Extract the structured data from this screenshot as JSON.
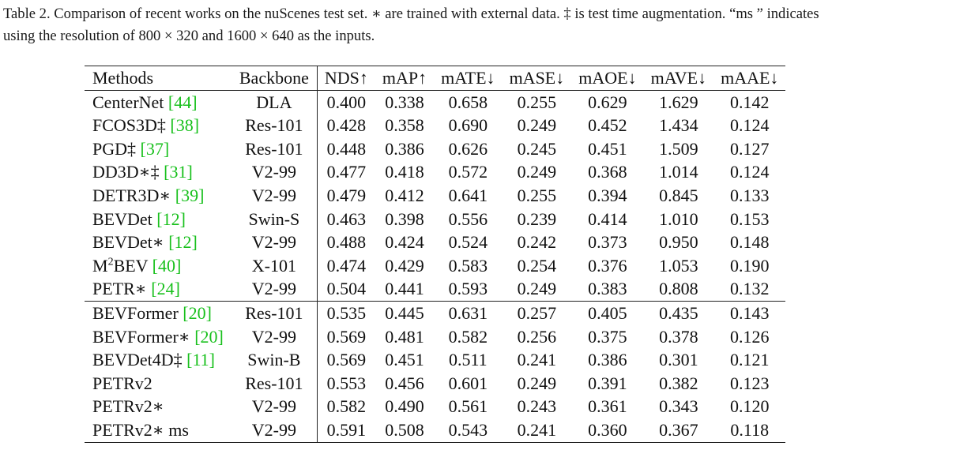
{
  "caption": {
    "line1": "Table 2. Comparison of recent works on the nuScenes test set. ∗ are trained with external data. ‡ is test time augmentation. “ms ” indicates",
    "line2": "using the resolution of 800 × 320 and 1600 × 640 as the inputs."
  },
  "table": {
    "headers": [
      "Methods",
      "Backbone",
      "NDS↑",
      "mAP↑",
      "mATE↓",
      "mASE↓",
      "mAOE↓",
      "mAVE↓",
      "mAAE↓"
    ],
    "group1": [
      {
        "method": "CenterNet",
        "cite": "[44]",
        "backbone": "DLA",
        "values": [
          "0.400",
          "0.338",
          "0.658",
          "0.255",
          "0.629",
          "1.629",
          "0.142"
        ],
        "bold": []
      },
      {
        "method": "FCOS3D‡",
        "cite": "[38]",
        "backbone": "Res-101",
        "values": [
          "0.428",
          "0.358",
          "0.690",
          "0.249",
          "0.452",
          "1.434",
          "0.124"
        ],
        "bold": []
      },
      {
        "method": "PGD‡",
        "cite": "[37]",
        "backbone": "Res-101",
        "values": [
          "0.448",
          "0.386",
          "0.626",
          "0.245",
          "0.451",
          "1.509",
          "0.127"
        ],
        "bold": []
      },
      {
        "method": "DD3D∗‡",
        "cite": "[31]",
        "backbone": "V2-99",
        "values": [
          "0.477",
          "0.418",
          "0.572",
          "0.249",
          "0.368",
          "1.014",
          "0.124"
        ],
        "bold": []
      },
      {
        "method": "DETR3D∗",
        "cite": "[39]",
        "backbone": "V2-99",
        "values": [
          "0.479",
          "0.412",
          "0.641",
          "0.255",
          "0.394",
          "0.845",
          "0.133"
        ],
        "bold": []
      },
      {
        "method": "BEVDet",
        "cite": "[12]",
        "backbone": "Swin-S",
        "values": [
          "0.463",
          "0.398",
          "0.556",
          "0.239",
          "0.414",
          "1.010",
          "0.153"
        ],
        "bold": []
      },
      {
        "method": "BEVDet∗",
        "cite": "[12]",
        "backbone": "V2-99",
        "values": [
          "0.488",
          "0.424",
          "0.524",
          "0.242",
          "0.373",
          "0.950",
          "0.148"
        ],
        "bold": []
      },
      {
        "method": "M",
        "sup": "2",
        "method_suffix": "BEV",
        "cite": "[40]",
        "backbone": "X-101",
        "values": [
          "0.474",
          "0.429",
          "0.583",
          "0.254",
          "0.376",
          "1.053",
          "0.190"
        ],
        "bold": []
      },
      {
        "method": "PETR∗",
        "cite": "[24]",
        "backbone": "V2-99",
        "values": [
          "0.504",
          "0.441",
          "0.593",
          "0.249",
          "0.383",
          "0.808",
          "0.132"
        ],
        "bold": []
      }
    ],
    "group2": [
      {
        "method": "BEVFormer",
        "cite": "[20]",
        "backbone": "Res-101",
        "values": [
          "0.535",
          "0.445",
          "0.631",
          "0.257",
          "0.405",
          "0.435",
          "0.143"
        ],
        "bold": []
      },
      {
        "method": "BEVFormer∗",
        "cite": "[20]",
        "backbone": "V2-99",
        "values": [
          "0.569",
          "0.481",
          "0.582",
          "0.256",
          "0.375",
          "0.378",
          "0.126"
        ],
        "bold": []
      },
      {
        "method": "BEVDet4D‡",
        "cite": "[11]",
        "backbone": "Swin-B",
        "values": [
          "0.569",
          "0.451",
          "0.511",
          "0.241",
          "0.386",
          "0.301",
          "0.121"
        ],
        "bold": [
          2,
          3,
          5
        ]
      },
      {
        "method": "PETRv2",
        "cite": "",
        "backbone": "Res-101",
        "values": [
          "0.553",
          "0.456",
          "0.601",
          "0.249",
          "0.391",
          "0.382",
          "0.123"
        ],
        "bold": []
      },
      {
        "method": "PETRv2∗",
        "cite": "",
        "backbone": "V2-99",
        "values": [
          "0.582",
          "0.490",
          "0.561",
          "0.243",
          "0.361",
          "0.343",
          "0.120"
        ],
        "bold": []
      },
      {
        "method": "PETRv2∗ ms",
        "cite": "",
        "backbone": "V2-99",
        "values": [
          "0.591",
          "0.508",
          "0.543",
          "0.241",
          "0.360",
          "0.367",
          "0.118"
        ],
        "bold": [
          0,
          1,
          3,
          4,
          6
        ]
      }
    ]
  }
}
